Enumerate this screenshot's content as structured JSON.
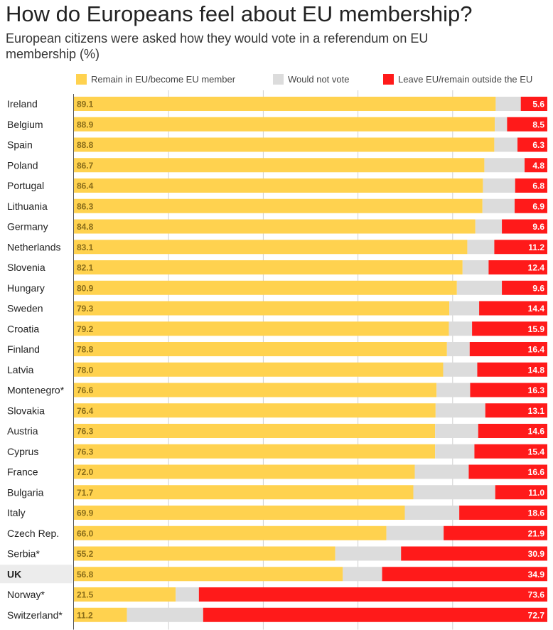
{
  "title": "How do Europeans feel about EU membership?",
  "subtitle": "European citizens were asked how they would vote in a referendum on EU membership (%)",
  "colors": {
    "remain": "#ffd24f",
    "would_not_vote": "#dcdcdc",
    "leave": "#ff1a1a",
    "gridline": "#cfcfcf",
    "axis": "#555555",
    "highlight_row": "#ececec"
  },
  "chart_data": {
    "type": "bar",
    "orientation": "horizontal",
    "stacked": true,
    "xlim": [
      0,
      100
    ],
    "legend_position": "top",
    "grid": true,
    "categories": [
      "Ireland",
      "Belgium",
      "Spain",
      "Poland",
      "Portugal",
      "Lithuania",
      "Germany",
      "Netherlands",
      "Slovenia",
      "Hungary",
      "Sweden",
      "Croatia",
      "Finland",
      "Latvia",
      "Montenegro*",
      "Slovakia",
      "Austria",
      "Cyprus",
      "France",
      "Bulgaria",
      "Italy",
      "Czech Rep.",
      "Serbia*",
      "UK",
      "Norway*",
      "Switzerland*"
    ],
    "highlight": "UK",
    "series": [
      {
        "name": "Remain in EU/become EU member",
        "values": [
          89.1,
          88.9,
          88.8,
          86.7,
          86.4,
          86.3,
          84.8,
          83.1,
          82.1,
          80.9,
          79.3,
          79.2,
          78.8,
          78.0,
          76.6,
          76.4,
          76.3,
          76.3,
          72.0,
          71.7,
          69.9,
          66.0,
          55.2,
          56.8,
          21.5,
          11.2
        ]
      },
      {
        "name": "Would not vote",
        "values": [
          5.3,
          2.6,
          4.9,
          8.5,
          6.8,
          6.8,
          5.6,
          5.7,
          5.5,
          9.5,
          6.3,
          4.9,
          4.8,
          7.2,
          7.1,
          10.5,
          9.1,
          8.3,
          11.4,
          17.3,
          11.5,
          12.1,
          13.9,
          8.3,
          4.9,
          16.1
        ]
      },
      {
        "name": "Leave EU/remain outside the EU",
        "values": [
          5.6,
          8.5,
          6.3,
          4.8,
          6.8,
          6.9,
          9.6,
          11.2,
          12.4,
          9.6,
          14.4,
          15.9,
          16.4,
          14.8,
          16.3,
          13.1,
          14.6,
          15.4,
          16.6,
          11.0,
          18.6,
          21.9,
          30.9,
          34.9,
          73.6,
          72.7
        ]
      }
    ],
    "data_labels": {
      "remain": [
        "89.1",
        "88.9",
        "88.8",
        "86.7",
        "86.4",
        "86.3",
        "84.8",
        "83.1",
        "82.1",
        "80.9",
        "79.3",
        "79.2",
        "78.8",
        "78.0",
        "76.6",
        "76.4",
        "76.3",
        "76.3",
        "72.0",
        "71.7",
        "69.9",
        "66.0",
        "55.2",
        "56.8",
        "21.5",
        "11.2"
      ],
      "leave": [
        "5.6",
        "8.5",
        "6.3",
        "4.8",
        "6.8",
        "6.9",
        "9.6",
        "11.2",
        "12.4",
        "9.6",
        "14.4",
        "15.9",
        "16.4",
        "14.8",
        "16.3",
        "13.1",
        "14.6",
        "15.4",
        "16.6",
        "11.0",
        "18.6",
        "21.9",
        "30.9",
        "34.9",
        "73.6",
        "72.7"
      ]
    }
  }
}
